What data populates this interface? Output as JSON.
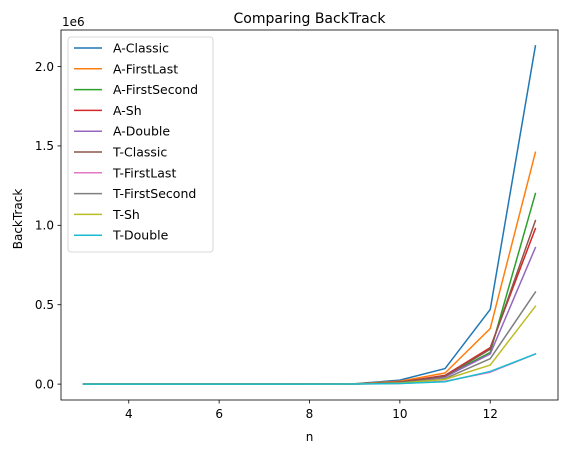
{
  "chart_data": {
    "type": "line",
    "title": "Comparing BackTrack",
    "xlabel": "n",
    "ylabel": "BackTrack",
    "y_offset_label": "1e6",
    "x": [
      3,
      4,
      5,
      6,
      7,
      8,
      9,
      10,
      11,
      12,
      13
    ],
    "xlim": [
      2.5,
      13.5
    ],
    "ylim": [
      -0.1,
      2.23
    ],
    "x_ticks": [
      4,
      6,
      8,
      10,
      12
    ],
    "y_ticks": [
      0.0,
      0.5,
      1.0,
      1.5,
      2.0
    ],
    "x_tick_labels": [
      "4",
      "6",
      "8",
      "10",
      "12"
    ],
    "y_tick_labels": [
      "0.0",
      "0.5",
      "1.0",
      "1.5",
      "2.0"
    ],
    "grid": false,
    "legend_position": "upper-left",
    "series": [
      {
        "name": "A-Classic",
        "color": "#1f77b4",
        "values": [
          0,
          0,
          0,
          0,
          0,
          0.0005,
          0.002,
          0.025,
          0.098,
          0.47,
          2.13
        ]
      },
      {
        "name": "A-FirstLast",
        "color": "#ff7f0e",
        "values": [
          0,
          0,
          0,
          0,
          0,
          0.0004,
          0.0015,
          0.018,
          0.07,
          0.35,
          1.46
        ]
      },
      {
        "name": "A-FirstSecond",
        "color": "#2ca02c",
        "values": [
          0,
          0,
          0,
          0,
          0,
          0.0003,
          0.001,
          0.012,
          0.05,
          0.2,
          1.2
        ]
      },
      {
        "name": "A-Sh",
        "color": "#d62728",
        "values": [
          0,
          0,
          0,
          0,
          0,
          0.0003,
          0.001,
          0.013,
          0.055,
          0.23,
          0.98
        ]
      },
      {
        "name": "A-Double",
        "color": "#9467bd",
        "values": [
          0,
          0,
          0,
          0,
          0,
          0.0002,
          0.001,
          0.01,
          0.045,
          0.19,
          0.86
        ]
      },
      {
        "name": "T-Classic",
        "color": "#8c564b",
        "values": [
          0,
          0,
          0,
          0,
          0,
          0.0003,
          0.001,
          0.012,
          0.05,
          0.22,
          1.03
        ]
      },
      {
        "name": "T-FirstLast",
        "color": "#e377c2",
        "values": [
          0,
          0,
          0,
          0,
          0,
          0.0001,
          0.0005,
          0.004,
          0.018,
          0.075,
          0.19
        ]
      },
      {
        "name": "T-FirstSecond",
        "color": "#7f7f7f",
        "values": [
          0,
          0,
          0,
          0,
          0,
          0.0002,
          0.0008,
          0.009,
          0.035,
          0.16,
          0.58
        ]
      },
      {
        "name": "T-Sh",
        "color": "#bcbd22",
        "values": [
          0,
          0,
          0,
          0,
          0,
          0.0001,
          0.0006,
          0.006,
          0.03,
          0.12,
          0.49
        ]
      },
      {
        "name": "T-Double",
        "color": "#17becf",
        "values": [
          0,
          0,
          0,
          0,
          0,
          0.0001,
          0.0005,
          0.004,
          0.015,
          0.08,
          0.19
        ]
      }
    ]
  }
}
